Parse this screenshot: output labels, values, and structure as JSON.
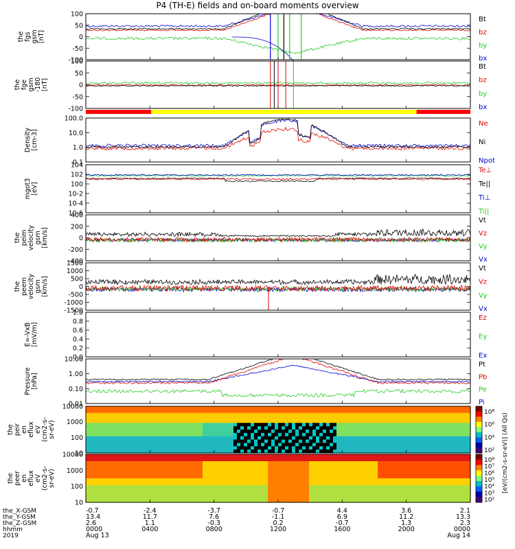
{
  "title": "P4 (TH-E) fields and on-board moments overview",
  "colors": {
    "black": "#000000",
    "red": "#e00000",
    "green": "#22cc22",
    "blue": "#0000d0",
    "yellow": "#ffff00",
    "bar_red": "#ff0000"
  },
  "chart_data": [
    {
      "type": "line",
      "id": "fgs",
      "ylabel": [
        "the",
        "fgs",
        "gsm",
        "[nT]"
      ],
      "ylim": [
        -100,
        100
      ],
      "ticks": [
        "100",
        "50",
        "0",
        "-50",
        "-100"
      ],
      "legend": [
        {
          "name": "Bt",
          "color": "black"
        },
        {
          "name": "bz",
          "color": "red"
        },
        {
          "name": "by",
          "color": "green"
        },
        {
          "name": "bx",
          "color": "blue"
        }
      ]
    },
    {
      "type": "line",
      "id": "fge",
      "ylabel": [
        "the",
        "fge",
        "gsm",
        "-180",
        "[nT]"
      ],
      "ylim": [
        -125,
        100
      ],
      "ticks": [
        "100",
        "50",
        "0",
        "-50",
        "-100"
      ],
      "legend": [
        {
          "name": "Bt",
          "color": "black"
        },
        {
          "name": "bz",
          "color": "red"
        },
        {
          "name": "by",
          "color": "green"
        },
        {
          "name": "bx",
          "color": "blue"
        }
      ]
    },
    {
      "type": "line",
      "id": "density",
      "ylabel": [
        "Density",
        "[cm-3]"
      ],
      "scale": "log",
      "ylim": [
        0.1,
        200
      ],
      "ticks": [
        "100.0",
        "10.0",
        "1.0",
        "0.1"
      ],
      "legend": [
        {
          "name": "Ne",
          "color": "red"
        },
        {
          "name": "Ni",
          "color": "black"
        },
        {
          "name": "Npot",
          "color": "blue"
        }
      ]
    },
    {
      "type": "line",
      "id": "temperature",
      "ylabel": [
        "mgot3",
        "[eV]"
      ],
      "scale": "log",
      "ticks": [
        "104",
        "102",
        "100",
        "10-2",
        "10-4",
        "10-6"
      ],
      "legend": [
        {
          "name": "Te⊥",
          "color": "red"
        },
        {
          "name": "Te||",
          "color": "black"
        },
        {
          "name": "Ti⊥",
          "color": "blue"
        },
        {
          "name": "Ti||",
          "color": "green"
        }
      ]
    },
    {
      "type": "line",
      "id": "peim_velocity",
      "ylabel": [
        "the",
        "peim",
        "velocity",
        "gsm",
        "[km/s]"
      ],
      "ylim": [
        -400,
        400
      ],
      "ticks": [
        "400",
        "200",
        "0",
        "-200",
        "-400"
      ],
      "legend": [
        {
          "name": "Vt",
          "color": "black"
        },
        {
          "name": "Vz",
          "color": "red"
        },
        {
          "name": "Vy",
          "color": "green"
        },
        {
          "name": "Vx",
          "color": "blue"
        }
      ]
    },
    {
      "type": "line",
      "id": "peem_velocity",
      "ylabel": [
        "the",
        "peem",
        "velocity",
        "gsm",
        "[km/s]"
      ],
      "ylim": [
        -1500,
        1500
      ],
      "ticks": [
        "1500",
        "1000",
        "500",
        "0",
        "-500",
        "-1000",
        "-1500"
      ],
      "legend": [
        {
          "name": "Vt",
          "color": "black"
        },
        {
          "name": "Vz",
          "color": "red"
        },
        {
          "name": "Vy",
          "color": "green"
        },
        {
          "name": "Vx",
          "color": "blue"
        }
      ]
    },
    {
      "type": "line",
      "id": "efield",
      "ylabel": [
        "E=-VxB",
        "[mV/m]"
      ],
      "ylim": [
        0,
        1
      ],
      "ticks": [
        "1.0",
        "0.8",
        "0.6",
        "0.4",
        "0.2",
        "0.0"
      ],
      "legend": [
        {
          "name": "Ez",
          "color": "red"
        },
        {
          "name": "Ey",
          "color": "green"
        },
        {
          "name": "Ex",
          "color": "blue"
        }
      ]
    },
    {
      "type": "line",
      "id": "pressure",
      "ylabel": [
        "Pressure",
        "[nPa]"
      ],
      "scale": "log",
      "ticks": [
        "10.00",
        "1.00",
        "0.10",
        "0.01"
      ],
      "legend": [
        {
          "name": "Pt",
          "color": "black"
        },
        {
          "name": "Pb",
          "color": "red"
        },
        {
          "name": "Pe",
          "color": "green"
        },
        {
          "name": "Pi",
          "color": "blue"
        }
      ]
    },
    {
      "type": "heatmap",
      "id": "peir_eflux",
      "ylabel": [
        "the",
        "peir",
        "en",
        "eflux",
        "eV",
        "(cm2-s-",
        "sr-eV)"
      ],
      "scale": "log",
      "ticks": [
        "10000",
        "1000",
        "100",
        "10"
      ],
      "colorbar_ticks": [
        "10⁸",
        "10⁶",
        "10⁴",
        "10²"
      ]
    },
    {
      "type": "heatmap",
      "id": "peer_eflux",
      "ylabel": [
        "the",
        "peer",
        "en",
        "eflux",
        "eV",
        "(cm2-s-",
        "sr-eV)"
      ],
      "scale": "log",
      "ticks": [
        "10000",
        "1000",
        "100",
        "10"
      ],
      "colorbar_ticks": [
        "10⁸",
        "10⁷",
        "10⁶",
        "10⁵",
        "10⁴",
        "10³",
        "10²"
      ]
    }
  ],
  "colorbar_label": "[eV/(cm2-s-sr-eV)] (All Qs)",
  "colorbar_label2": "[eV/(cm2-s-sr-eV)]",
  "position_table": {
    "rows": [
      {
        "label": "the_X-GSM",
        "values": [
          "-0.7",
          "-2.4",
          "-3.7",
          "-0.7",
          "4.4",
          "3.6",
          "2.1"
        ]
      },
      {
        "label": "the_Y-GSM",
        "values": [
          "13.4",
          "11.7",
          "7.6",
          "-1.1",
          "6.9",
          "11.2",
          "13.3"
        ]
      },
      {
        "label": "the_Z-GSM",
        "values": [
          "2.6",
          "1.1",
          "-0.3",
          "0.2",
          "-0.7",
          "1.3",
          "2.3"
        ]
      },
      {
        "label": "hhmm",
        "values": [
          "0000",
          "0400",
          "0800",
          "1200",
          "1600",
          "2000",
          "0000"
        ]
      },
      {
        "label": "2019",
        "values": [
          "Aug 13",
          "",
          "",
          "",
          "",
          "",
          "Aug 14"
        ]
      }
    ]
  }
}
